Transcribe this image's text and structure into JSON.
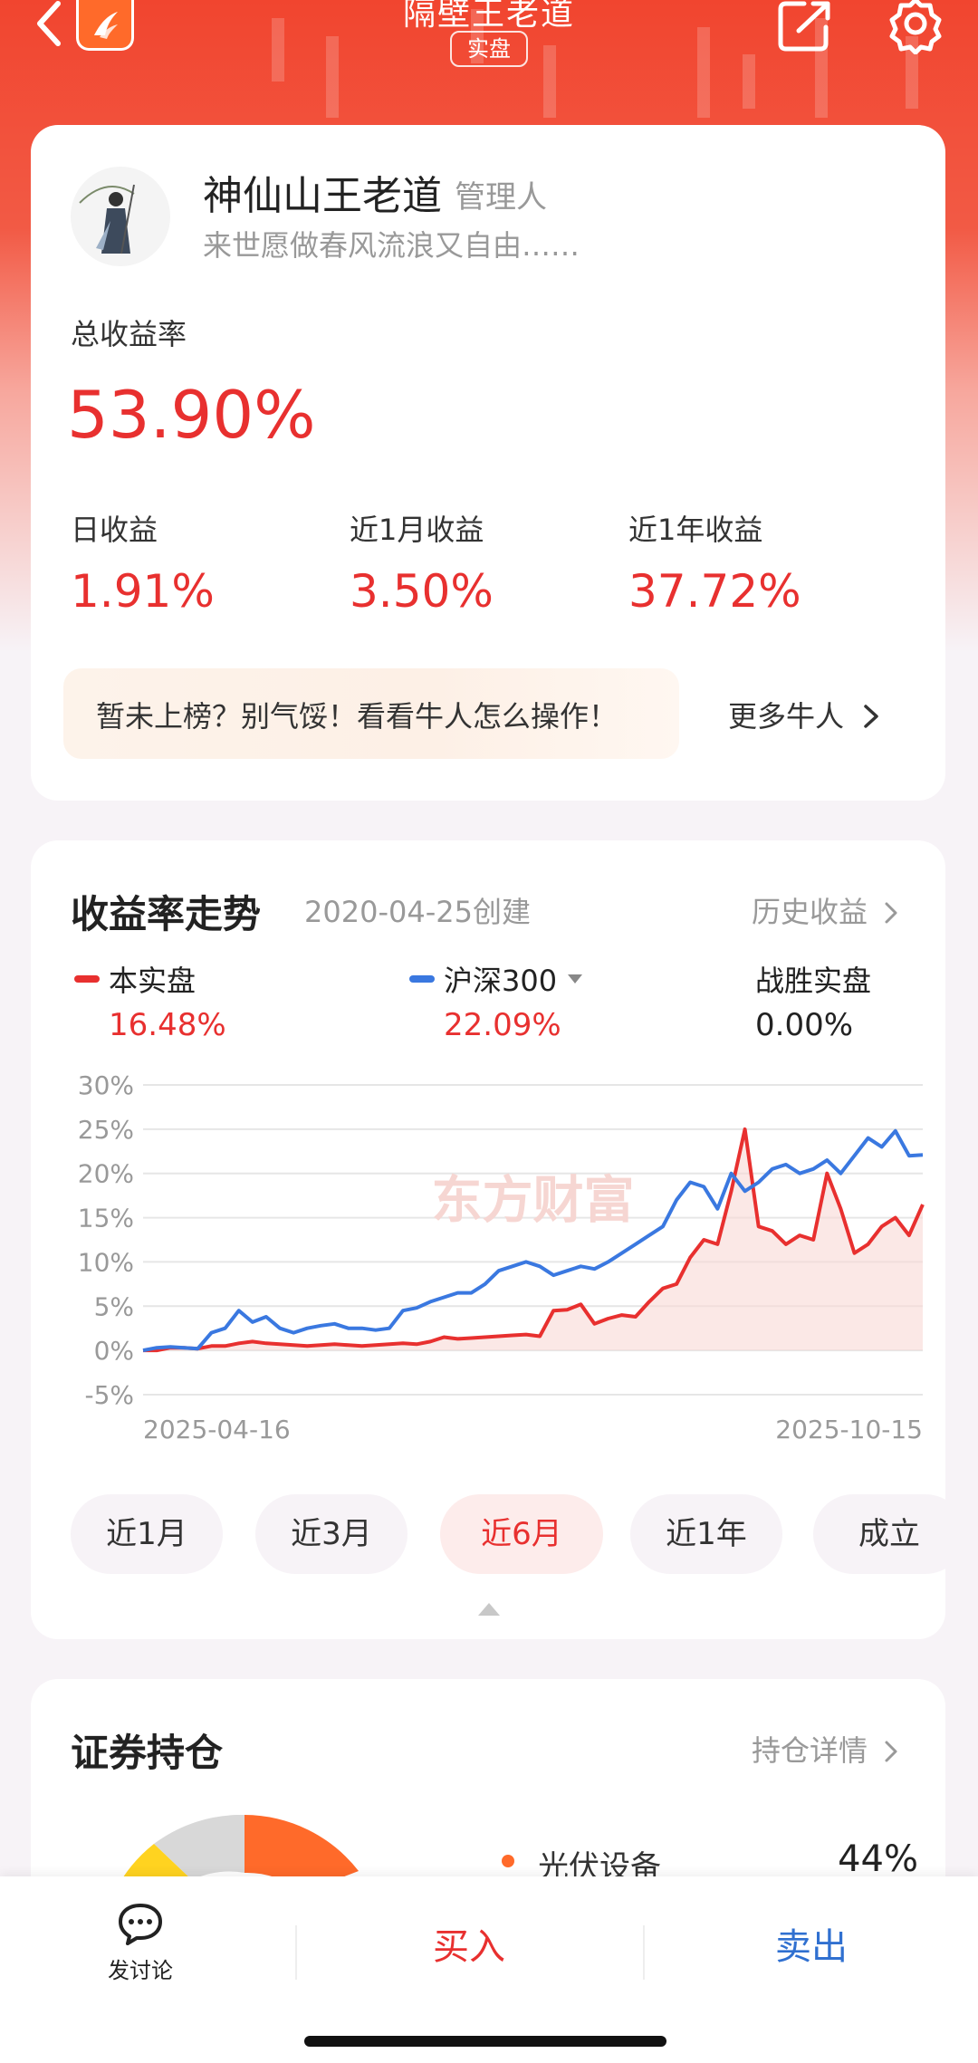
{
  "nav": {
    "title": "隔壁王老道",
    "badge": "实盘"
  },
  "profile": {
    "name": "神仙山王老道",
    "role": "管理人",
    "bio": "来世愿做春风流浪又自由……",
    "total_return_label": "总收益率",
    "total_return_value": "53.90%",
    "stats": [
      {
        "label": "日收益",
        "value": "1.91%"
      },
      {
        "label": "近1月收益",
        "value": "3.50%"
      },
      {
        "label": "近1年收益",
        "value": "37.72%"
      }
    ],
    "promo_text": "暂未上榜？别气馁！看看牛人怎么操作！",
    "promo_more": "更多牛人"
  },
  "trend": {
    "title": "收益率走势",
    "created": "2020-04-25创建",
    "history_link": "历史收益",
    "legend": [
      {
        "name": "本实盘",
        "value": "16.48%",
        "color": "#e8302f"
      },
      {
        "name": "沪深300",
        "value": "22.09%",
        "color": "#3a78e0"
      },
      {
        "name": "战胜实盘",
        "value": "0.00%"
      }
    ],
    "watermark": "东方财富",
    "periods": [
      "近1月",
      "近3月",
      "近6月",
      "近1年",
      "成立"
    ],
    "active_period": "近6月"
  },
  "chart_data": {
    "type": "line",
    "x_start": "2025-04-16",
    "x_end": "2025-10-15",
    "y_ticks": [
      "30%",
      "25%",
      "20%",
      "15%",
      "10%",
      "5%",
      "0%",
      "-5%"
    ],
    "ylim": [
      -5,
      30
    ],
    "series": [
      {
        "name": "本实盘",
        "color": "#e8302f",
        "values": [
          0,
          0,
          0.3,
          0.3,
          0.2,
          0.5,
          0.5,
          0.8,
          1.0,
          0.8,
          0.7,
          0.6,
          0.5,
          0.6,
          0.7,
          0.6,
          0.5,
          0.6,
          0.7,
          0.8,
          0.7,
          1.0,
          1.5,
          1.3,
          1.4,
          1.5,
          1.6,
          1.7,
          1.8,
          1.6,
          4.5,
          4.6,
          5.2,
          3.0,
          3.6,
          4.0,
          3.8,
          5.5,
          7.0,
          7.5,
          10.5,
          12.5,
          12.0,
          18.0,
          25.0,
          14.0,
          13.5,
          12.0,
          13.0,
          12.5,
          20.0,
          16.0,
          11.0,
          12.0,
          14.0,
          15.0,
          13.0,
          16.48
        ]
      },
      {
        "name": "沪深300",
        "color": "#3a78e0",
        "values": [
          0,
          0.3,
          0.4,
          0.3,
          0.2,
          2.0,
          2.5,
          4.5,
          3.2,
          3.8,
          2.5,
          2.0,
          2.5,
          2.8,
          3.0,
          2.5,
          2.5,
          2.3,
          2.5,
          4.5,
          4.8,
          5.5,
          6.0,
          6.5,
          6.5,
          7.5,
          9.0,
          9.5,
          10.0,
          9.5,
          8.5,
          9.0,
          9.5,
          9.2,
          10.0,
          11.0,
          12.0,
          13.0,
          14.0,
          17.0,
          19.0,
          18.5,
          16.0,
          20.0,
          18.0,
          19.0,
          20.5,
          21.0,
          20.0,
          20.5,
          21.5,
          20.0,
          22.0,
          24.0,
          23.0,
          24.8,
          22.0,
          22.09
        ]
      }
    ]
  },
  "holdings": {
    "title": "证券持仓",
    "detail_link": "持仓详情",
    "items": [
      {
        "name": "光伏设备",
        "pct": "44%",
        "color": "#ff6a2a"
      }
    ],
    "donut_colors": [
      "#ff6a2a",
      "#ffd320",
      "#d8d8d8"
    ]
  },
  "bottom": {
    "discuss": "发讨论",
    "buy": "买入",
    "sell": "卖出"
  }
}
